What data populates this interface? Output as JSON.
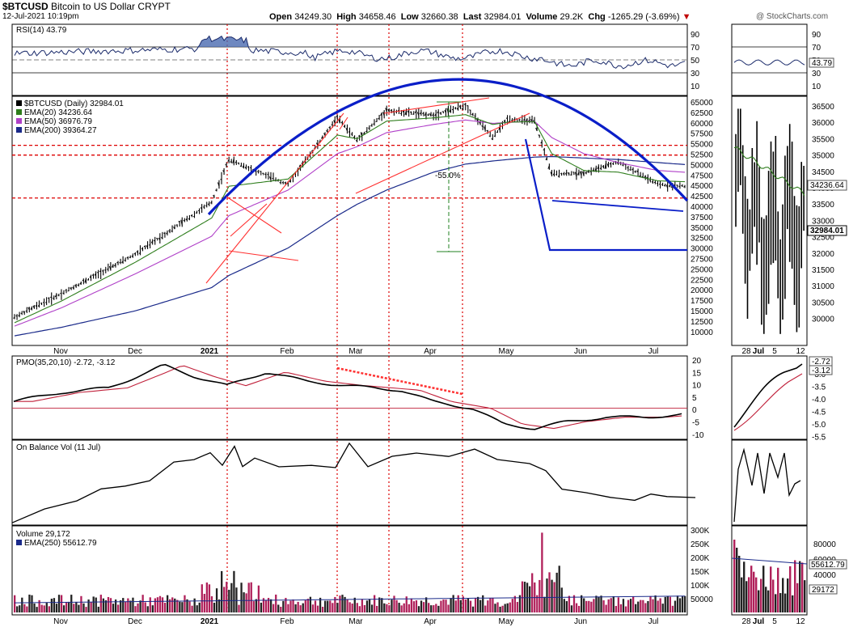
{
  "header": {
    "symbol": "$BTCUSD",
    "name": "Bitcoin to US Dollar",
    "exchange": "CRYPT",
    "date": "12-Jul-2021 10:19pm",
    "open_label": "Open",
    "open": "34249.30",
    "high_label": "High",
    "high": "34658.46",
    "low_label": "Low",
    "low": "32660.38",
    "last_label": "Last",
    "last": "32984.01",
    "volume_label": "Volume",
    "volume": "29.2K",
    "chg_label": "Chg",
    "chg": "-1265.29 (-3.69%)",
    "watermark": "@ StockCharts.com"
  },
  "colors": {
    "price": "#000000",
    "ema20": "#2e7d1c",
    "ema50": "#b040c8",
    "ema200": "#1a2a8a",
    "trend_red": "#ff3030",
    "arc_blue": "#0a1ec8",
    "dotted_red": "#dd0000",
    "rsi_fill": "#4a6ab0",
    "volume_bar": "#b0205a",
    "pmo_signal": "#c0203a"
  },
  "panels": {
    "rsi": {
      "title": "RSI(14) 43.79",
      "side_value": "43.79",
      "ticks": [
        "90",
        "70",
        "50",
        "30",
        "10"
      ]
    },
    "price": {
      "legend": [
        {
          "text": "$BTCUSD (Daily) 32984.01",
          "color": "#000000"
        },
        {
          "text": "EMA(20) 34236.64",
          "color": "#2e7d1c"
        },
        {
          "text": "EMA(50) 36976.79",
          "color": "#b040c8"
        },
        {
          "text": "EMA(200) 39364.27",
          "color": "#1a2a8a"
        }
      ],
      "annotation": "-55.0%",
      "ticks": [
        "65000",
        "62500",
        "60000",
        "57500",
        "55000",
        "52500",
        "50000",
        "47500",
        "45000",
        "42500",
        "40000",
        "37500",
        "35000",
        "32500",
        "30000",
        "27500",
        "25000",
        "22500",
        "20000",
        "17500",
        "15000",
        "12500",
        "10000"
      ],
      "side_ticks": [
        "36500",
        "36000",
        "35500",
        "35000",
        "34500",
        "34000",
        "33500",
        "33000",
        "32500",
        "32000",
        "31500",
        "31000",
        "30500",
        "30000"
      ],
      "side_values": [
        "34236.64",
        "32984.01"
      ]
    },
    "pmo": {
      "title": "PMO(35,20,10) -2.72, -3.12",
      "ticks": [
        "20",
        "15",
        "10",
        "5",
        "0",
        "-5",
        "-10"
      ],
      "side_ticks": [
        "-3.0",
        "-3.5",
        "-4.0",
        "-4.5",
        "-5.0",
        "-5.5"
      ],
      "side_values": [
        "-2.72",
        "-3.12"
      ]
    },
    "obv": {
      "title": "On Balance Vol (11 Jul)"
    },
    "volume": {
      "title": "Volume 29,172",
      "ema_label": "EMA(250) 55612.79",
      "ticks": [
        "300K",
        "250K",
        "200K",
        "150K",
        "100K",
        "50000"
      ],
      "side_ticks": [
        "80000",
        "60000",
        "40000",
        "20000"
      ],
      "side_values": [
        "55612.79",
        "29172"
      ]
    }
  },
  "x_axis": {
    "labels": [
      "Nov",
      "Dec",
      "2021",
      "Feb",
      "Mar",
      "Apr",
      "May",
      "Jun",
      "Jul"
    ],
    "side_labels": [
      "28",
      "Jul",
      "5",
      "12"
    ]
  },
  "chart_data": {
    "type": "line",
    "title": "$BTCUSD (Daily)",
    "y_scale": "log",
    "ylim": [
      9000,
      67000
    ],
    "x": [
      "2020-10-13",
      "2020-11-01",
      "2020-12-01",
      "2021-01-01",
      "2021-01-08",
      "2021-02-01",
      "2021-02-21",
      "2021-03-01",
      "2021-03-13",
      "2021-04-01",
      "2021-04-14",
      "2021-04-25",
      "2021-05-01",
      "2021-05-12",
      "2021-05-19",
      "2021-06-01",
      "2021-06-15",
      "2021-07-01",
      "2021-07-12"
    ],
    "series": [
      {
        "name": "$BTCUSD",
        "values": [
          11400,
          13800,
          19000,
          29000,
          41000,
          33500,
          57500,
          48000,
          61000,
          58800,
          63500,
          49000,
          57000,
          56000,
          36500,
          36700,
          40200,
          33500,
          32984
        ]
      },
      {
        "name": "EMA(20)",
        "values": [
          10900,
          13000,
          17800,
          25500,
          33000,
          35000,
          50000,
          48500,
          56000,
          57500,
          59000,
          54500,
          55500,
          55800,
          43000,
          37500,
          37000,
          34500,
          34236.64
        ]
      },
      {
        "name": "EMA(50)",
        "values": [
          10600,
          12300,
          16200,
          22000,
          26000,
          32000,
          43000,
          45500,
          51000,
          54500,
          56500,
          55000,
          55400,
          55900,
          49000,
          43000,
          40000,
          37500,
          36976.79
        ]
      },
      {
        "name": "EMA(200)",
        "values": [
          9800,
          10500,
          12000,
          14500,
          16000,
          20000,
          26000,
          28500,
          32000,
          37000,
          39500,
          40500,
          41000,
          41800,
          42000,
          41500,
          41000,
          40000,
          39364.27
        ]
      }
    ],
    "annotations": {
      "decline_pct": "-55.0%",
      "support": 30000,
      "resistance_levels": [
        46000,
        42500
      ],
      "arc_peak": 71000
    },
    "rsi": {
      "last": 43.79,
      "levels": [
        70,
        50,
        30
      ]
    },
    "pmo": {
      "last": -2.72,
      "signal": -3.12
    },
    "volume": {
      "last": 29172,
      "ema250": 55612.79
    }
  }
}
